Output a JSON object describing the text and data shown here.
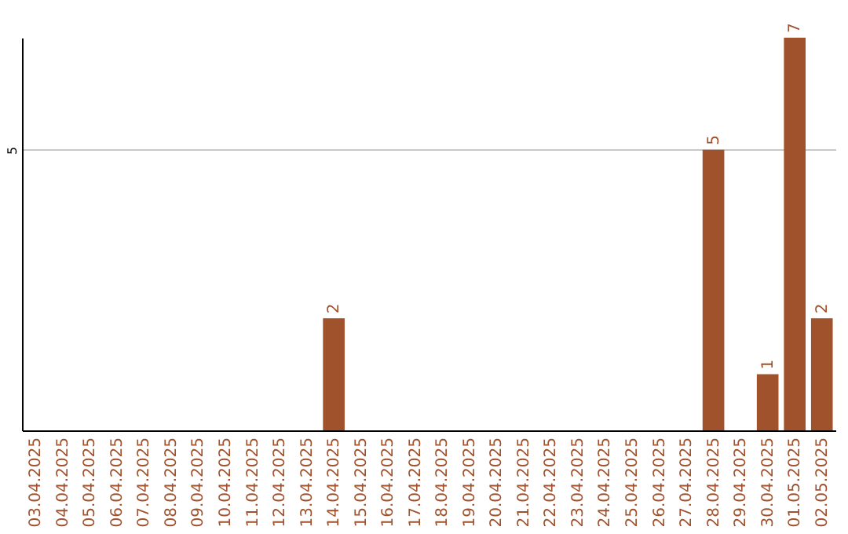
{
  "chart_data": {
    "type": "bar",
    "categories": [
      "03.04.2025",
      "04.04.2025",
      "05.04.2025",
      "06.04.2025",
      "07.04.2025",
      "08.04.2025",
      "09.04.2025",
      "10.04.2025",
      "11.04.2025",
      "12.04.2025",
      "13.04.2025",
      "14.04.2025",
      "15.04.2025",
      "16.04.2025",
      "17.04.2025",
      "18.04.2025",
      "19.04.2025",
      "20.04.2025",
      "21.04.2025",
      "22.04.2025",
      "23.04.2025",
      "24.04.2025",
      "25.04.2025",
      "26.04.2025",
      "27.04.2025",
      "28.04.2025",
      "29.04.2025",
      "30.04.2025",
      "01.05.2025",
      "02.05.2025"
    ],
    "values": [
      0,
      0,
      0,
      0,
      0,
      0,
      0,
      0,
      0,
      0,
      0,
      2,
      0,
      0,
      0,
      0,
      0,
      0,
      0,
      0,
      0,
      0,
      0,
      0,
      0,
      5,
      0,
      1,
      7,
      2
    ],
    "value_labels": [
      null,
      null,
      null,
      null,
      null,
      null,
      null,
      null,
      null,
      null,
      null,
      "2",
      null,
      null,
      null,
      null,
      null,
      null,
      null,
      null,
      null,
      null,
      null,
      null,
      null,
      "5",
      null,
      "1",
      "7",
      "2"
    ],
    "color": "#a0522d",
    "ylim": [
      0,
      7
    ],
    "yticks": [
      5
    ],
    "grid": "y"
  }
}
